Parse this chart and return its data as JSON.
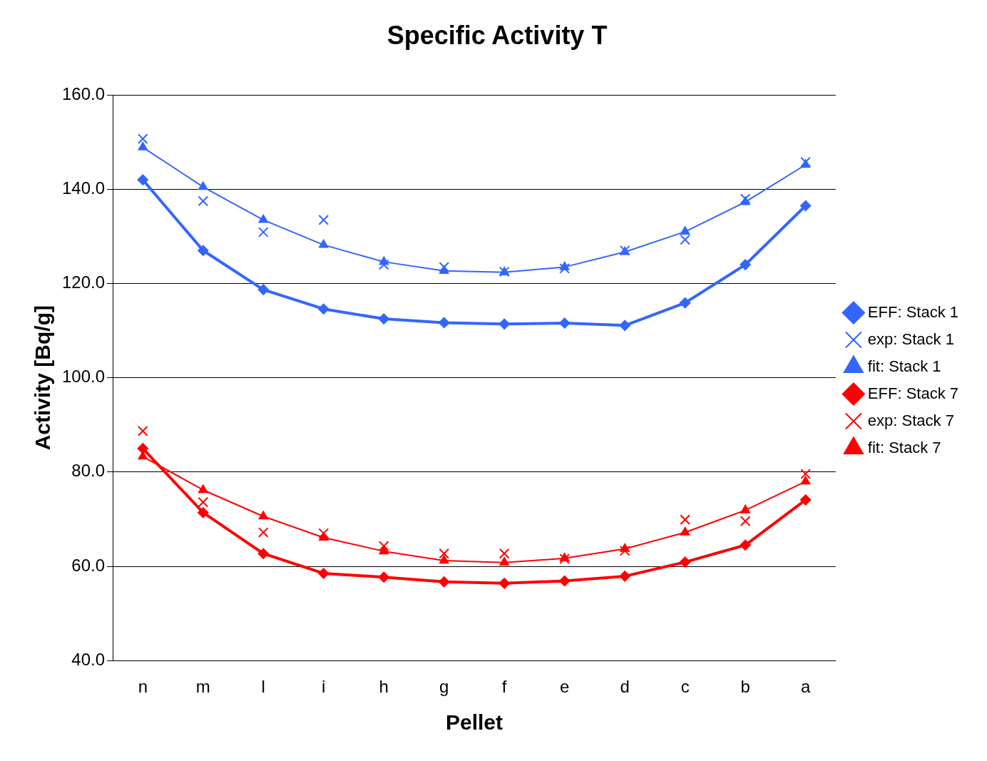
{
  "chart_data": {
    "type": "line",
    "title": "Specific Activity T",
    "xlabel": "Pellet",
    "ylabel": "Activity [Bq/g]",
    "categories": [
      "n",
      "m",
      "l",
      "i",
      "h",
      "g",
      "f",
      "e",
      "d",
      "c",
      "b",
      "a"
    ],
    "ylim": [
      40,
      160
    ],
    "yticks": [
      {
        "value": 40,
        "label": "40.0"
      },
      {
        "value": 60,
        "label": "60.0"
      },
      {
        "value": 80,
        "label": "80.0"
      },
      {
        "value": 100,
        "label": "100.0"
      },
      {
        "value": 120,
        "label": "120.0"
      },
      {
        "value": 140,
        "label": "140.0"
      },
      {
        "value": 160,
        "label": "160.0"
      }
    ],
    "grid": "y",
    "legend": "right",
    "series": [
      {
        "name": "EFF: Stack 1",
        "type": "line",
        "marker": "diamond",
        "color": "#3366ff",
        "values": [
          142.0,
          127.0,
          118.7,
          114.6,
          112.5,
          111.7,
          111.4,
          111.6,
          111.1,
          115.9,
          124.0,
          136.5
        ]
      },
      {
        "name": "exp: Stack 1",
        "type": "scatter",
        "marker": "cross",
        "color": "#3366ff",
        "values": [
          150.7,
          137.5,
          130.9,
          133.5,
          124.0,
          123.5,
          122.5,
          123.2,
          127.0,
          129.3,
          138.0,
          145.8
        ]
      },
      {
        "name": "fit: Stack 1",
        "type": "line",
        "marker": "triangle",
        "color": "#3366ff",
        "values": [
          148.9,
          140.5,
          133.5,
          128.2,
          124.6,
          122.7,
          122.4,
          123.5,
          126.7,
          131.0,
          137.3,
          145.2
        ]
      },
      {
        "name": "EFF: Stack 7",
        "type": "line",
        "marker": "diamond",
        "color": "#ff0000",
        "values": [
          85.0,
          71.4,
          62.7,
          58.5,
          57.7,
          56.7,
          56.4,
          56.9,
          57.9,
          60.9,
          64.5,
          74.1
        ]
      },
      {
        "name": "exp: Stack 7",
        "type": "scatter",
        "marker": "cross",
        "color": "#ff0000",
        "values": [
          88.7,
          73.6,
          67.2,
          67.0,
          64.3,
          62.7,
          62.7,
          61.6,
          63.3,
          69.9,
          69.6,
          79.6
        ]
      },
      {
        "name": "fit: Stack 7",
        "type": "line",
        "marker": "triangle",
        "color": "#ff0000",
        "values": [
          83.3,
          76.2,
          70.6,
          66.1,
          63.2,
          61.2,
          60.8,
          61.7,
          63.7,
          67.2,
          71.9,
          78.0
        ]
      }
    ]
  }
}
